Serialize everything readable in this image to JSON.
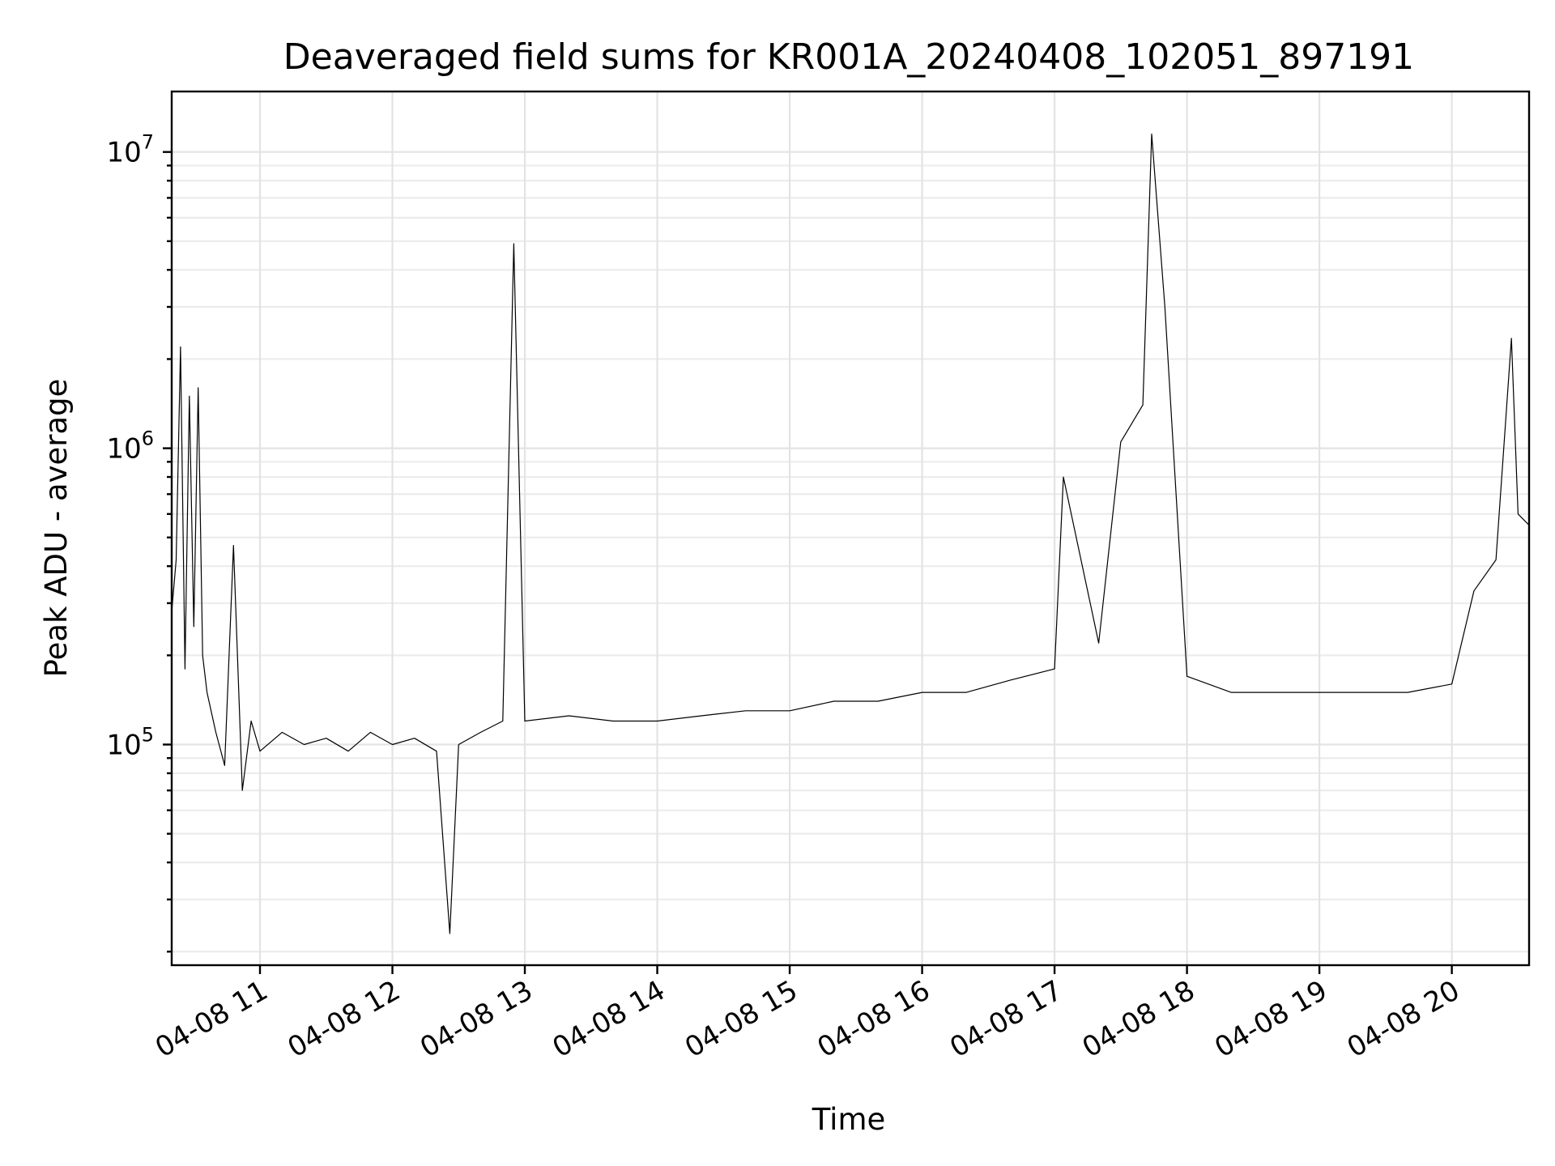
{
  "chart_data": {
    "type": "line",
    "title": "Deaveraged field sums for KR001A_20240408_102051_897191",
    "xlabel": "Time",
    "ylabel": "Peak ADU - average",
    "yscale": "log",
    "grid": "both",
    "x_domain": [
      "2024-04-08 10:20",
      "2024-04-08 20:35"
    ],
    "ylim": [
      18000,
      16000000
    ],
    "x_ticks": [
      {
        "label": "04-08 11",
        "value": "2024-04-08 11:00"
      },
      {
        "label": "04-08 12",
        "value": "2024-04-08 12:00"
      },
      {
        "label": "04-08 13",
        "value": "2024-04-08 13:00"
      },
      {
        "label": "04-08 14",
        "value": "2024-04-08 14:00"
      },
      {
        "label": "04-08 15",
        "value": "2024-04-08 15:00"
      },
      {
        "label": "04-08 16",
        "value": "2024-04-08 16:00"
      },
      {
        "label": "04-08 17",
        "value": "2024-04-08 17:00"
      },
      {
        "label": "04-08 18",
        "value": "2024-04-08 18:00"
      },
      {
        "label": "04-08 19",
        "value": "2024-04-08 19:00"
      },
      {
        "label": "04-08 20",
        "value": "2024-04-08 20:00"
      }
    ],
    "y_ticks": [
      {
        "base": "10",
        "exp": "5",
        "value": 100000
      },
      {
        "base": "10",
        "exp": "6",
        "value": 1000000
      },
      {
        "base": "10",
        "exp": "7",
        "value": 10000000
      }
    ],
    "series": [
      {
        "color": "#000000",
        "points": [
          [
            "2024-04-08 10:20",
            280000
          ],
          [
            "2024-04-08 10:22",
            420000
          ],
          [
            "2024-04-08 10:24",
            2200000
          ],
          [
            "2024-04-08 10:26",
            180000
          ],
          [
            "2024-04-08 10:28",
            1500000
          ],
          [
            "2024-04-08 10:30",
            250000
          ],
          [
            "2024-04-08 10:32",
            1600000
          ],
          [
            "2024-04-08 10:34",
            200000
          ],
          [
            "2024-04-08 10:36",
            150000
          ],
          [
            "2024-04-08 10:40",
            110000
          ],
          [
            "2024-04-08 10:44",
            85000
          ],
          [
            "2024-04-08 10:48",
            470000
          ],
          [
            "2024-04-08 10:52",
            70000
          ],
          [
            "2024-04-08 10:56",
            120000
          ],
          [
            "2024-04-08 11:00",
            95000
          ],
          [
            "2024-04-08 11:10",
            110000
          ],
          [
            "2024-04-08 11:20",
            100000
          ],
          [
            "2024-04-08 11:30",
            105000
          ],
          [
            "2024-04-08 11:40",
            95000
          ],
          [
            "2024-04-08 11:50",
            110000
          ],
          [
            "2024-04-08 12:00",
            100000
          ],
          [
            "2024-04-08 12:10",
            105000
          ],
          [
            "2024-04-08 12:20",
            95000
          ],
          [
            "2024-04-08 12:26",
            23000
          ],
          [
            "2024-04-08 12:30",
            100000
          ],
          [
            "2024-04-08 12:40",
            110000
          ],
          [
            "2024-04-08 12:50",
            120000
          ],
          [
            "2024-04-08 12:55",
            4900000
          ],
          [
            "2024-04-08 13:00",
            120000
          ],
          [
            "2024-04-08 13:20",
            125000
          ],
          [
            "2024-04-08 13:40",
            120000
          ],
          [
            "2024-04-08 14:00",
            120000
          ],
          [
            "2024-04-08 14:20",
            125000
          ],
          [
            "2024-04-08 14:40",
            130000
          ],
          [
            "2024-04-08 15:00",
            130000
          ],
          [
            "2024-04-08 15:20",
            140000
          ],
          [
            "2024-04-08 15:40",
            140000
          ],
          [
            "2024-04-08 16:00",
            150000
          ],
          [
            "2024-04-08 16:20",
            150000
          ],
          [
            "2024-04-08 16:40",
            165000
          ],
          [
            "2024-04-08 17:00",
            180000
          ],
          [
            "2024-04-08 17:04",
            800000
          ],
          [
            "2024-04-08 17:20",
            220000
          ],
          [
            "2024-04-08 17:30",
            1050000
          ],
          [
            "2024-04-08 17:40",
            1400000
          ],
          [
            "2024-04-08 17:44",
            11500000
          ],
          [
            "2024-04-08 17:50",
            3000000
          ],
          [
            "2024-04-08 18:00",
            170000
          ],
          [
            "2024-04-08 18:20",
            150000
          ],
          [
            "2024-04-08 18:40",
            150000
          ],
          [
            "2024-04-08 19:00",
            150000
          ],
          [
            "2024-04-08 19:20",
            150000
          ],
          [
            "2024-04-08 19:40",
            150000
          ],
          [
            "2024-04-08 20:00",
            160000
          ],
          [
            "2024-04-08 20:10",
            330000
          ],
          [
            "2024-04-08 20:20",
            420000
          ],
          [
            "2024-04-08 20:27",
            2350000
          ],
          [
            "2024-04-08 20:30",
            600000
          ],
          [
            "2024-04-08 20:35",
            550000
          ]
        ]
      }
    ]
  }
}
